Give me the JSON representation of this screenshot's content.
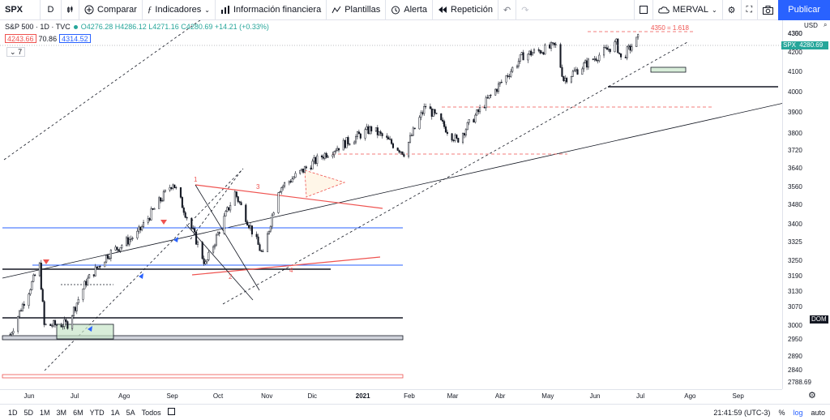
{
  "toolbar": {
    "symbol": "SPX",
    "interval": "D",
    "compare": "Comparar",
    "indicators": "Indicadores",
    "financials": "Información financiera",
    "templates": "Plantillas",
    "alert": "Alerta",
    "replay": "Repetición",
    "layout_name": "MERVAL",
    "publish": "Publicar"
  },
  "legend": {
    "title": "S&P 500 · 1D · TVC",
    "ohlc": "O4276.28  H4286.12  L4271.16  C4280.69  +14.21 (+0.33%)",
    "chip1": "4243.66",
    "chip2": "70.86",
    "chip3": "4314.52",
    "collapsed_count": "7"
  },
  "price_axis": {
    "currency": "USD",
    "labels": [
      "4350",
      "4300",
      "4200",
      "4100",
      "4000",
      "3900",
      "3800",
      "3720",
      "3640",
      "3560",
      "3480",
      "3400",
      "3325",
      "3250",
      "3190",
      "3130",
      "3070",
      "3000",
      "2950",
      "2890",
      "2840",
      "2788.69"
    ],
    "current_symbol": "SPX",
    "current_price": "4280.69",
    "dom_label": "DOM"
  },
  "time_axis": {
    "labels": [
      "Jun",
      "Jul",
      "Ago",
      "Sep",
      "Oct",
      "Nov",
      "Dic",
      "2021",
      "Feb",
      "Mar",
      "Abr",
      "May",
      "Jun",
      "Jul",
      "Ago",
      "Sep"
    ]
  },
  "annotations": {
    "target": "4350 = 1.618",
    "wave1": "1",
    "wave2": "2",
    "wave3": "3",
    "wave4": "4"
  },
  "bottombar": {
    "ranges": [
      "1D",
      "5D",
      "1M",
      "3M",
      "6M",
      "YTD",
      "1A",
      "5A",
      "Todos"
    ],
    "clock": "21:41:59 (UTC-3)",
    "percent": "%",
    "log": "log",
    "auto": "auto"
  },
  "chart_data": {
    "type": "candlestick",
    "symbol": "S&P 500",
    "y_range": [
      2788,
      4360
    ],
    "x_range": [
      "2020-05-15",
      "2021-09-30"
    ],
    "series": [
      {
        "name": "SPX",
        "close_path": [
          [
            "2020-05-20",
            2970
          ],
          [
            "2020-06-08",
            3232
          ],
          [
            "2020-06-11",
            3002
          ],
          [
            "2020-06-26",
            3009
          ],
          [
            "2020-07-08",
            3169
          ],
          [
            "2020-07-22",
            3276
          ],
          [
            "2020-08-10",
            3360
          ],
          [
            "2020-09-02",
            3580
          ],
          [
            "2020-09-23",
            3236
          ],
          [
            "2020-10-12",
            3534
          ],
          [
            "2020-10-30",
            3270
          ],
          [
            "2020-11-09",
            3550
          ],
          [
            "2020-12-08",
            3702
          ],
          [
            "2021-01-08",
            3824
          ],
          [
            "2021-01-29",
            3714
          ],
          [
            "2021-02-12",
            3934
          ],
          [
            "2021-03-04",
            3768
          ],
          [
            "2021-04-16",
            4185
          ],
          [
            "2021-05-07",
            4232
          ],
          [
            "2021-05-12",
            4063
          ],
          [
            "2021-06-15",
            4246
          ],
          [
            "2021-06-18",
            4166
          ],
          [
            "2021-06-30",
            4280
          ]
        ]
      }
    ]
  }
}
